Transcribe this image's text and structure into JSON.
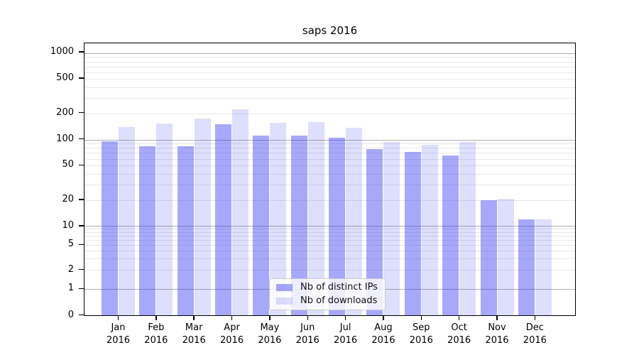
{
  "title": "saps 2016",
  "chart_data": {
    "type": "bar",
    "title": "saps 2016",
    "categories": [
      "Jan",
      "Feb",
      "Mar",
      "Apr",
      "May",
      "Jun",
      "Jul",
      "Aug",
      "Sep",
      "Oct",
      "Nov",
      "Dec"
    ],
    "year_label": "2016",
    "series": [
      {
        "name": "Nb of distinct IPs",
        "color": "rgba(47,47,244,0.42)",
        "values": [
          97,
          84,
          84,
          152,
          112,
          113,
          106,
          79,
          73,
          66,
          20,
          12
        ]
      },
      {
        "name": "Nb of downloads",
        "color": "rgba(47,47,244,0.16)",
        "values": [
          140,
          155,
          178,
          225,
          158,
          160,
          138,
          95,
          88,
          94,
          21,
          12
        ]
      }
    ],
    "y_ticks": [
      0,
      1,
      2,
      5,
      10,
      20,
      50,
      100,
      200,
      500,
      1000
    ],
    "yscale": "log-like (linear below 1)",
    "ylim": [
      0,
      1285
    ],
    "xlabel": "",
    "ylabel": "",
    "grid": "on",
    "legend_position": "lower center"
  },
  "colors": {
    "bar_ips_composited": "#aaaaf8",
    "bar_downloads_composited": "#dcdcfa",
    "grid_major": "#b0b0b0",
    "grid_minor": "#e8e8e8",
    "axis": "#000000",
    "background": "#ffffff",
    "legend_border": "#cccccc",
    "legend_background": "rgba(255,255,255,0.8)"
  }
}
